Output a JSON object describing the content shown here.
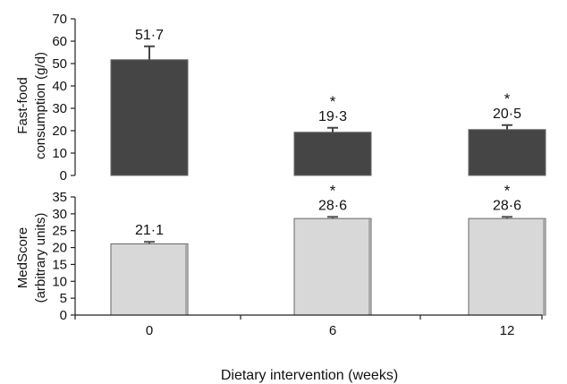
{
  "chart_data": [
    {
      "type": "bar",
      "categories": [
        "0",
        "6",
        "12"
      ],
      "values": [
        51.7,
        19.3,
        20.5
      ],
      "value_labels": [
        "51·7",
        "19·3",
        "20·5"
      ],
      "error_plus": [
        6,
        2,
        2
      ],
      "significance": [
        "",
        "*",
        "*"
      ],
      "ylabel_lines": [
        "Fast-food",
        "consumption (g/d)"
      ],
      "ylim": [
        0,
        70
      ],
      "yticks": [
        0,
        10,
        20,
        30,
        40,
        50,
        60,
        70
      ],
      "bar_color": "#454545"
    },
    {
      "type": "bar",
      "categories": [
        "0",
        "6",
        "12"
      ],
      "values": [
        21.1,
        28.6,
        28.6
      ],
      "value_labels": [
        "21·1",
        "28·6",
        "28·6"
      ],
      "error_plus": [
        0.6,
        0.5,
        0.5
      ],
      "significance": [
        "",
        "*",
        "*"
      ],
      "ylabel_lines": [
        "MedScore",
        "(arbitrary units)"
      ],
      "ylim": [
        0,
        35
      ],
      "yticks": [
        0,
        5,
        10,
        15,
        20,
        25,
        30,
        35
      ],
      "bar_color": "#d8d8d8"
    }
  ],
  "xlabel": "Dietary intervention (weeks)"
}
